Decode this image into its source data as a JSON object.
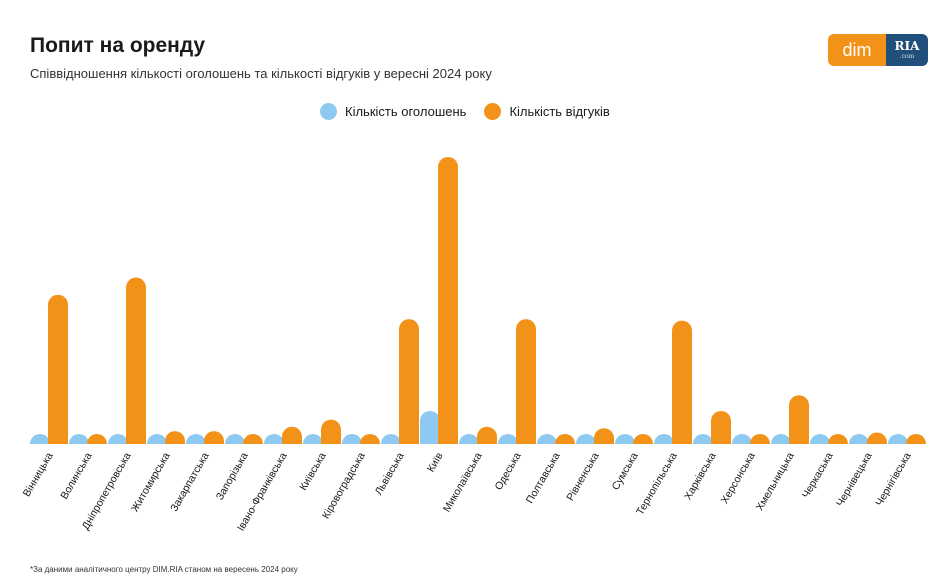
{
  "header": {
    "title": "Попит на оренду",
    "subtitle": "Співвідношення кількості оголошень та кількості відгуків у вересні 2024 року"
  },
  "logo": {
    "left": "dim",
    "right": "RIA",
    "right_sub": ".com",
    "left_color": "#f39219",
    "right_color": "#1f4f7a"
  },
  "footnote": "*За даними аналітичного центру DIM.RIA станом на вересень 2024 року",
  "chart_data": {
    "type": "bar",
    "title": "Попит на оренду",
    "subtitle": "Співвідношення кількості оголошень та кількості відгуків у вересні 2024 року",
    "legend_position": "top-center",
    "grid": false,
    "y_axis_visible": false,
    "ylim": [
      0,
      100
    ],
    "categories": [
      "Вінницька",
      "Волинська",
      "Дніпропетровська",
      "Житомирська",
      "Закарпатська",
      "Запорізька",
      "Івано-Франківська",
      "Київська",
      "Кіровоградська",
      "Львівська",
      "Київ",
      "Миколаївська",
      "Одеська",
      "Полтавська",
      "Рівненська",
      "Сумська",
      "Тернопільська",
      "Харківська",
      "Херсонська",
      "Хмельницька",
      "Черкаська",
      "Чернівецька",
      "Чернігівська"
    ],
    "series": [
      {
        "name": "Кількість оголошень",
        "color": "#8ec9f2",
        "values": [
          1.2,
          0.6,
          3.0,
          0.6,
          0.5,
          0.5,
          0.8,
          0.8,
          0.3,
          2.0,
          11.5,
          0.5,
          1.0,
          0.4,
          0.5,
          0.4,
          0.8,
          0.6,
          0.2,
          0.4,
          0.5,
          0.2,
          0.1
        ]
      },
      {
        "name": "Кількість відгуків",
        "color": "#f39219",
        "values": [
          52,
          2,
          58,
          4.5,
          4.5,
          3,
          6,
          8.5,
          1.0,
          43.5,
          100,
          6,
          43.5,
          3,
          5.5,
          3,
          43,
          11.5,
          0.5,
          17,
          3,
          4,
          0.8
        ]
      }
    ]
  }
}
